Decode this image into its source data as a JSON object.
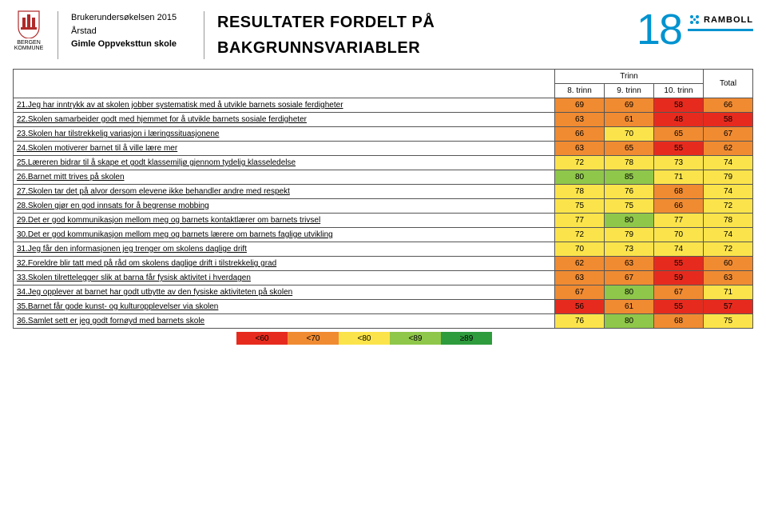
{
  "logo_text": "BERGEN KOMMUNE",
  "meta": {
    "line1": "Brukerundersøkelsen 2015",
    "line2": "Årstad",
    "line3": "Gimle Oppveksttun skole"
  },
  "title_line1": "RESULTATER FORDELT PÅ",
  "title_line2": "BAKGRUNNSVARIABLER",
  "page_number": "18",
  "brand": "RAMBOLL",
  "table": {
    "group_header": "Trinn",
    "columns": [
      "8. trinn",
      "9. trinn",
      "10. trinn",
      "Total"
    ],
    "rows": [
      {
        "label": "21.Jeg har inntrykk av at skolen jobber systematisk med å utvikle barnets sosiale ferdigheter",
        "vals": [
          69,
          69,
          58,
          66
        ]
      },
      {
        "label": "22.Skolen samarbeider godt med hjemmet for å utvikle barnets sosiale ferdigheter",
        "vals": [
          63,
          61,
          48,
          58
        ]
      },
      {
        "label": "23.Skolen har tilstrekkelig variasjon i læringssituasjonene",
        "vals": [
          66,
          70,
          65,
          67
        ]
      },
      {
        "label": "24.Skolen motiverer barnet til å ville lære mer",
        "vals": [
          63,
          65,
          55,
          62
        ]
      },
      {
        "label": "25.Læreren bidrar til å skape et godt klassemiljø gjennom tydelig klasseledelse",
        "vals": [
          72,
          78,
          73,
          74
        ]
      },
      {
        "label": "26.Barnet mitt trives på skolen",
        "vals": [
          80,
          85,
          71,
          79
        ]
      },
      {
        "label": "27.Skolen tar det på alvor dersom elevene ikke behandler andre med respekt",
        "vals": [
          78,
          76,
          68,
          74
        ]
      },
      {
        "label": "28.Skolen gjør en god innsats for å begrense mobbing",
        "vals": [
          75,
          75,
          66,
          72
        ]
      },
      {
        "label": "29.Det er god kommunikasjon mellom meg og barnets kontaktlærer om barnets trivsel",
        "vals": [
          77,
          80,
          77,
          78
        ]
      },
      {
        "label": "30.Det er god kommunikasjon mellom meg og barnets lærere om barnets faglige utvikling",
        "vals": [
          72,
          79,
          70,
          74
        ]
      },
      {
        "label": "31.Jeg får den informasjonen jeg trenger om skolens daglige drift",
        "vals": [
          70,
          73,
          74,
          72
        ]
      },
      {
        "label": "32.Foreldre blir tatt med på råd om skolens daglige drift i tilstrekkelig grad",
        "vals": [
          62,
          63,
          55,
          60
        ]
      },
      {
        "label": "33.Skolen tilrettelegger slik at barna får fysisk aktivitet i hverdagen",
        "vals": [
          63,
          67,
          59,
          63
        ]
      },
      {
        "label": "34.Jeg opplever at barnet har godt utbytte av den fysiske aktiviteten på skolen",
        "vals": [
          67,
          80,
          67,
          71
        ]
      },
      {
        "label": "35.Barnet får gode kunst- og kulturopplevelser via skolen",
        "vals": [
          56,
          61,
          55,
          57
        ]
      },
      {
        "label": "36.Samlet sett er jeg godt fornøyd med barnets skole",
        "vals": [
          76,
          80,
          68,
          75
        ]
      }
    ]
  },
  "legend": {
    "items": [
      {
        "label": "<60",
        "color": "#e62b1e"
      },
      {
        "label": "<70",
        "color": "#f08b32"
      },
      {
        "label": "<80",
        "color": "#fbe44b"
      },
      {
        "label": "<89",
        "color": "#8fc74a"
      },
      {
        "label": "≥89",
        "color": "#2e9b3d"
      }
    ]
  },
  "colors": {
    "band_lt60": "#e62b1e",
    "band_lt70": "#f08b32",
    "band_lt80": "#fbe44b",
    "band_lt89": "#8fc74a",
    "band_ge89": "#2e9b3d"
  }
}
